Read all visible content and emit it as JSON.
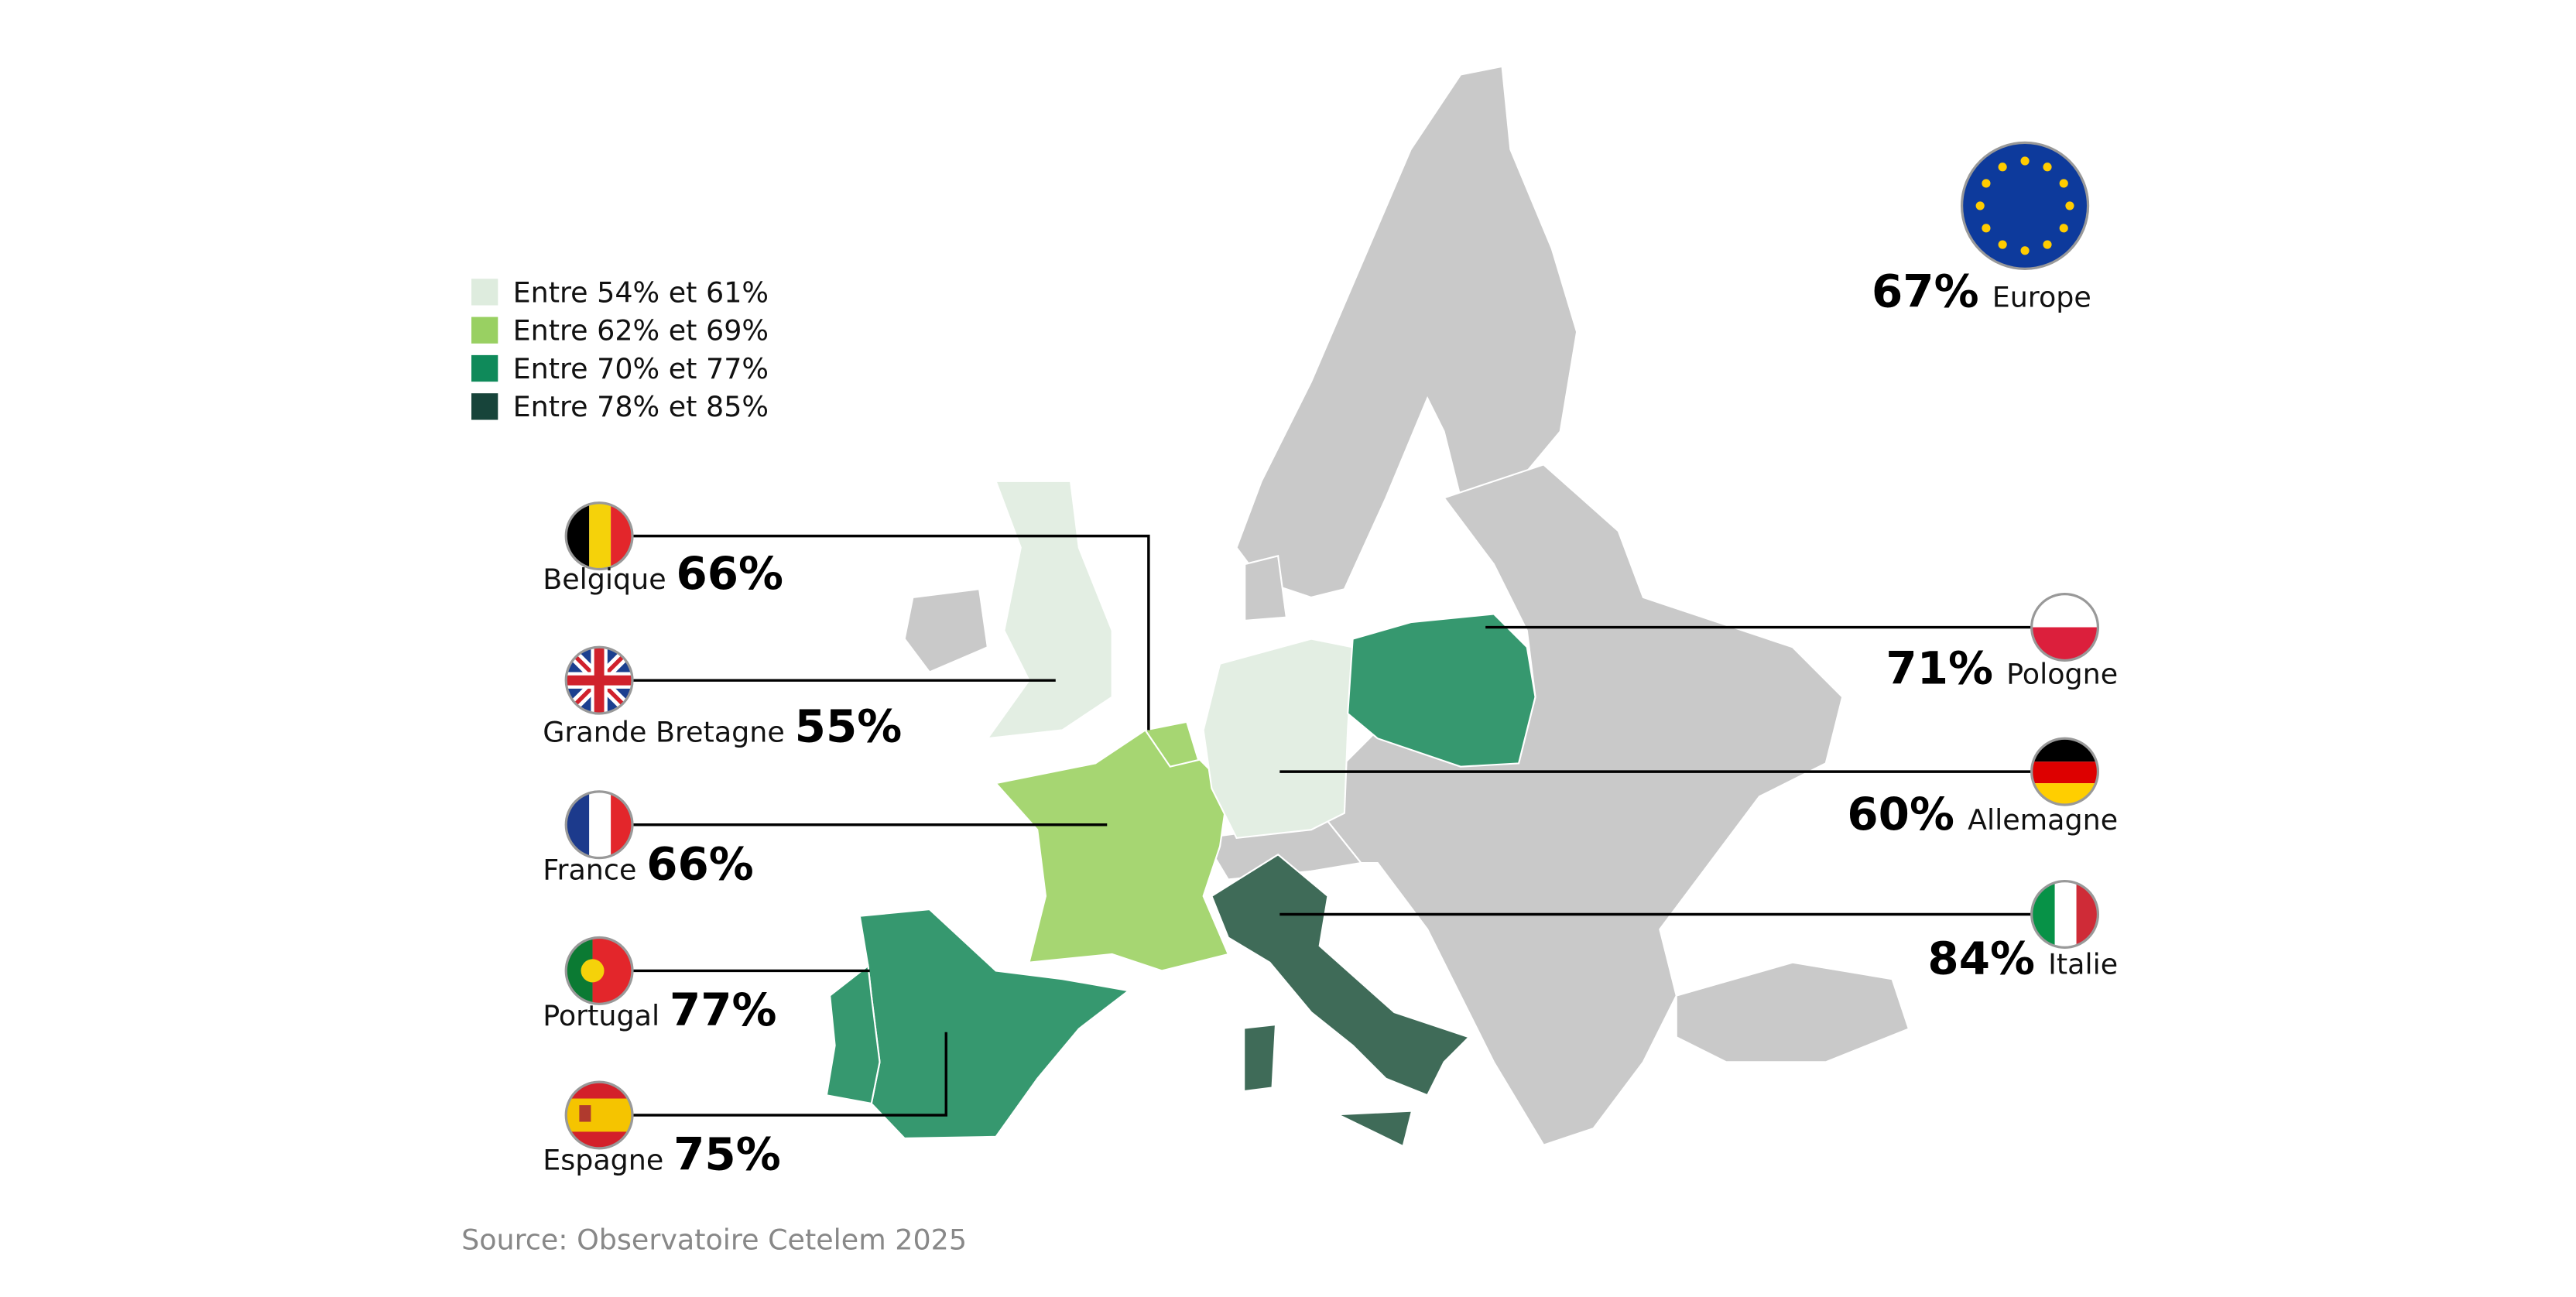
{
  "legend": [
    {
      "label": "Entre 54% et 61%",
      "color": "#deecde"
    },
    {
      "label": "Entre 62% et 69%",
      "color": "#99d062"
    },
    {
      "label": "Entre 70% et 77%",
      "color": "#0f8a5a"
    },
    {
      "label": "Entre 78% et 85%",
      "color": "#17443a"
    }
  ],
  "europe": {
    "value": "67%",
    "name": "Europe"
  },
  "countries_left": [
    {
      "name": "Belgique",
      "value": "66%"
    },
    {
      "name": "Grande Bretagne",
      "value": "55%"
    },
    {
      "name": "France",
      "value": "66%"
    },
    {
      "name": "Portugal",
      "value": "77%"
    },
    {
      "name": "Espagne",
      "value": "75%"
    }
  ],
  "countries_right": [
    {
      "name": "Pologne",
      "value": "71%"
    },
    {
      "name": "Allemagne",
      "value": "60%"
    },
    {
      "name": "Italie",
      "value": "84%"
    }
  ],
  "source": "Source: Observatoire Cetelem 2025"
}
